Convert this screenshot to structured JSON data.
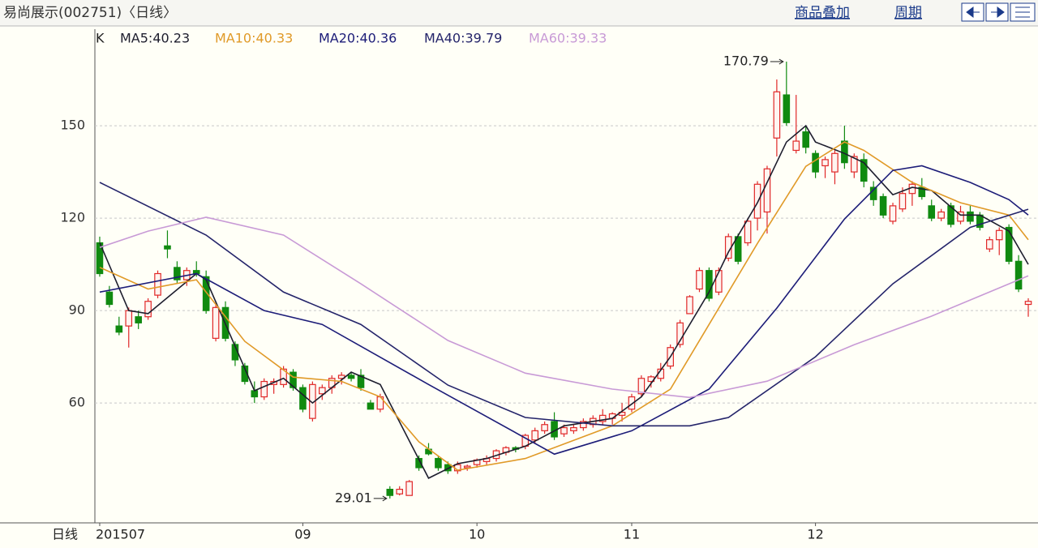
{
  "toolbar": {
    "overlay": "商品叠加",
    "period": "周期"
  },
  "chart_data": {
    "type": "candlestick",
    "title": "易尚展示(002751)〈日线〉",
    "period_label": "日线",
    "legend_prefix": "K",
    "up_color": "#e02828",
    "down_color": "#108a10",
    "ylim": [
      21.1,
      180.8
    ],
    "yticks": [
      60,
      90,
      120,
      150
    ],
    "grid": true,
    "xlim": [
      -0.5,
      96.67
    ],
    "xticks": [
      {
        "value": 0,
        "label": "201507"
      },
      {
        "value": 21,
        "label": "09"
      },
      {
        "value": 39,
        "label": "10"
      },
      {
        "value": 55,
        "label": "11"
      },
      {
        "value": 74,
        "label": "12"
      }
    ],
    "open": [
      112,
      96,
      85,
      85,
      88,
      88,
      95,
      111,
      104,
      100,
      103,
      101,
      81,
      91,
      79,
      72,
      64,
      62,
      66,
      66,
      70,
      65,
      55,
      63,
      65,
      68,
      69,
      69,
      60,
      58,
      32,
      30.5,
      30,
      42,
      45,
      42,
      40,
      38,
      39,
      40,
      41,
      42,
      44,
      45.5,
      46,
      48,
      51,
      54,
      50,
      51,
      52,
      53,
      54,
      55,
      56,
      58,
      63,
      67,
      68,
      72,
      79,
      89,
      97,
      103,
      96,
      107,
      114,
      112,
      120,
      122,
      146,
      160,
      142,
      148,
      141,
      137,
      135,
      145,
      135,
      139,
      130,
      127,
      119,
      123,
      128,
      130,
      124,
      120,
      124,
      119,
      122,
      121,
      110,
      113,
      117,
      106,
      92
    ],
    "high": [
      114,
      98,
      88,
      91,
      90,
      94,
      103,
      116,
      106,
      104,
      106,
      103,
      92,
      93,
      80,
      73,
      67,
      68,
      68,
      72,
      71,
      66,
      67,
      66,
      69,
      70,
      70,
      71,
      61,
      63,
      33,
      33,
      35,
      43,
      47,
      43,
      41,
      41,
      40,
      42,
      43,
      45,
      46,
      46,
      50,
      52,
      54,
      57,
      53,
      53,
      55,
      56,
      58,
      57,
      60,
      63,
      69,
      69,
      73,
      79,
      87,
      95,
      104,
      104,
      104,
      115,
      115,
      120,
      132,
      137,
      165,
      170.79,
      160,
      150,
      142,
      140,
      142,
      150,
      141,
      141,
      132,
      128,
      125,
      130,
      132,
      133,
      126,
      123,
      125,
      124,
      124,
      122,
      114,
      117,
      118,
      108,
      94
    ],
    "low": [
      101,
      91,
      82,
      78,
      84,
      87,
      94,
      107,
      99,
      98,
      101,
      89,
      80,
      80,
      72,
      66,
      60,
      61,
      63,
      65,
      64,
      57,
      54,
      61,
      63,
      66,
      67,
      64,
      58,
      57,
      29.01,
      30,
      30,
      38,
      43,
      38,
      37,
      37,
      38,
      39,
      40,
      41,
      43,
      44,
      45,
      47,
      50,
      48,
      49,
      50,
      51,
      52,
      53,
      53,
      54,
      57,
      62,
      65,
      67,
      71,
      78,
      89,
      96,
      93,
      95,
      106,
      105,
      111,
      116,
      115,
      140,
      150,
      141,
      141,
      133,
      133,
      131,
      136,
      133,
      130,
      124,
      120,
      118,
      122,
      124,
      126,
      119,
      119,
      117,
      118,
      118,
      116,
      109,
      108,
      105,
      96,
      88
    ],
    "close": [
      102,
      92,
      83,
      90,
      86,
      93,
      102,
      110,
      100,
      103,
      102,
      90,
      91,
      81,
      74,
      67,
      62,
      67,
      67,
      71,
      65,
      58,
      66,
      65,
      68,
      69,
      68,
      65,
      58,
      62,
      30,
      32,
      34.5,
      39,
      43.5,
      39,
      38,
      40,
      39.5,
      41.5,
      42,
      44.5,
      45.5,
      45,
      49.5,
      51,
      53,
      49,
      52,
      52,
      54,
      55,
      56,
      56.5,
      57,
      62,
      68,
      68.5,
      71,
      78,
      86,
      94.5,
      103,
      94,
      103,
      114,
      106,
      119,
      131,
      136,
      161,
      151,
      145,
      143,
      135,
      139,
      141,
      138,
      140,
      132,
      126,
      121,
      124,
      128,
      131,
      127,
      120,
      122,
      118,
      122,
      119,
      117,
      113,
      116,
      106,
      97,
      93
    ],
    "series": [
      {
        "name": "MA5:40.23",
        "color": "#1e1e2e",
        "x": [
          0,
          3,
          5,
          10,
          11,
          16,
          19,
          22,
          26,
          29,
          34,
          37,
          40,
          44,
          48,
          53,
          56,
          59,
          63,
          65,
          68,
          71,
          73,
          74,
          77,
          79,
          82,
          84,
          86,
          89,
          91,
          94,
          96
        ],
        "values": [
          112,
          90,
          89,
          102,
          100,
          64,
          68,
          60,
          70,
          66,
          35.6,
          40.3,
          42,
          46,
          52.6,
          55,
          62,
          75,
          96,
          109,
          125,
          144.7,
          150,
          144.7,
          141,
          138,
          127.6,
          130,
          129,
          121,
          121,
          115.8,
          105
        ]
      },
      {
        "name": "MA10:40.33",
        "color": "#e09a28",
        "x": [
          0,
          5,
          10,
          15,
          20,
          25,
          29,
          33,
          37,
          44,
          53,
          59,
          63,
          68,
          73,
          77,
          79,
          84,
          89,
          94,
          96
        ],
        "values": [
          104,
          97,
          100,
          80,
          68.4,
          67,
          62,
          47.4,
          38.2,
          42,
          52.6,
          64.5,
          85.5,
          111.8,
          136.8,
          144.7,
          142,
          131.6,
          125,
          121,
          113
        ]
      },
      {
        "name": "MA20:40.36",
        "color": "#1c1c78",
        "x": [
          0,
          10,
          17,
          23,
          34,
          47,
          55,
          63,
          70,
          77,
          82,
          85,
          90,
          94,
          96
        ],
        "values": [
          96,
          102,
          90,
          85.5,
          66,
          43.4,
          51,
          64.5,
          90.8,
          119.7,
          135.5,
          137,
          131.6,
          126,
          121
        ]
      },
      {
        "name": "MA40:39.79",
        "color": "#24246a",
        "x": [
          0,
          11,
          19,
          27,
          36,
          44,
          53,
          61,
          65,
          74,
          82,
          90,
          96
        ],
        "values": [
          131.6,
          114.5,
          96,
          85.5,
          65.8,
          55.3,
          52.6,
          52.6,
          55.3,
          75,
          98.7,
          117,
          122.9
        ]
      },
      {
        "name": "MA60:39.33",
        "color": "#c89ad6",
        "x": [
          0,
          5,
          11,
          19,
          27,
          36,
          44,
          53,
          61,
          69,
          78,
          86,
          96
        ],
        "values": [
          110.5,
          115.8,
          120.3,
          114.5,
          98.7,
          80.3,
          69.7,
          64.5,
          61.8,
          67.1,
          78.9,
          88.2,
          101.3
        ]
      }
    ],
    "annotations": [
      {
        "text": "170.79",
        "x": 71,
        "y": 170.79
      },
      {
        "text": "29.01",
        "x": 30,
        "y": 29.01
      }
    ]
  }
}
